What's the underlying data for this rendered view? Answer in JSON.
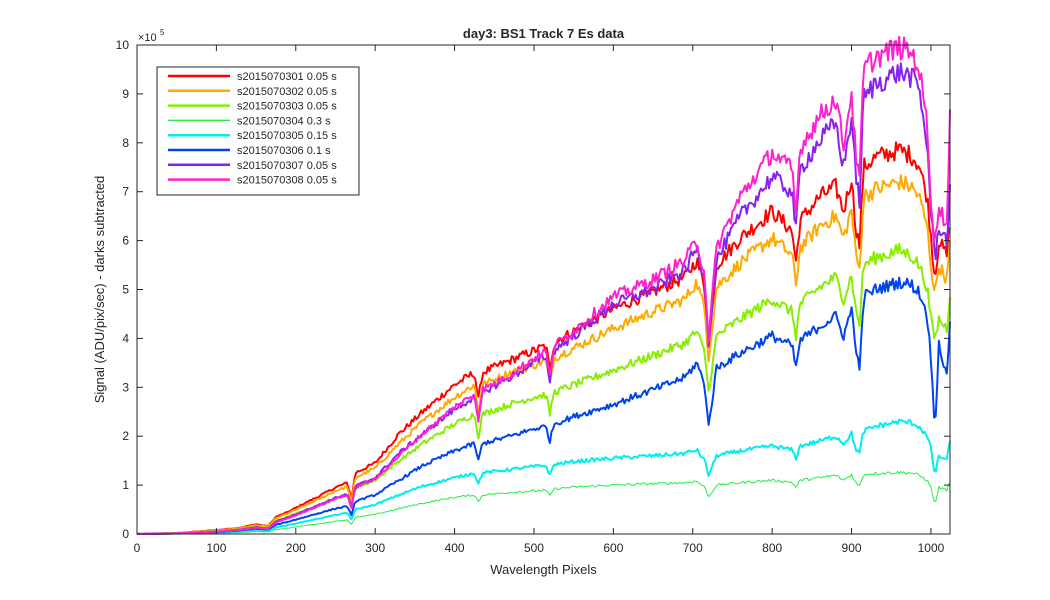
{
  "chart_data": {
    "type": "line",
    "title": "day3: BS1  Track 7 Es data",
    "xlabel": "Wavelength Pixels",
    "ylabel": "Signal (ADU/pix/sec) - darks subtracted",
    "y_exponent_label": "×10",
    "y_exponent_power": "5",
    "xlim": [
      0,
      1024
    ],
    "ylim": [
      0,
      10
    ],
    "y_scale_factor": 100000,
    "x_ticks": [
      0,
      100,
      200,
      300,
      400,
      500,
      600,
      700,
      800,
      900,
      1000
    ],
    "y_ticks": [
      0,
      1,
      2,
      3,
      4,
      5,
      6,
      7,
      8,
      9,
      10
    ],
    "legend_position": "top-left",
    "grid": false,
    "x_points": [
      0,
      50,
      100,
      130,
      150,
      165,
      175,
      190,
      210,
      230,
      250,
      265,
      270,
      275,
      300,
      330,
      360,
      400,
      425,
      430,
      435,
      470,
      500,
      515,
      520,
      525,
      550,
      600,
      650,
      690,
      705,
      715,
      720,
      730,
      760,
      800,
      825,
      830,
      835,
      860,
      880,
      890,
      900,
      905,
      910,
      915,
      930,
      960,
      975,
      985,
      995,
      1000,
      1005,
      1010,
      1020,
      1024
    ],
    "series": [
      {
        "name": "s2015070301 0.05 s",
        "color": "#ff0000",
        "width": 2,
        "values": [
          0,
          0.02,
          0.08,
          0.13,
          0.2,
          0.16,
          0.35,
          0.45,
          0.62,
          0.78,
          0.95,
          1.05,
          0.7,
          1.25,
          1.45,
          2.05,
          2.5,
          3.05,
          3.3,
          2.75,
          3.3,
          3.55,
          3.75,
          3.85,
          3.35,
          3.9,
          4.15,
          4.6,
          4.95,
          5.25,
          5.6,
          5.05,
          3.95,
          5.5,
          6.05,
          6.6,
          6.2,
          5.55,
          6.4,
          6.9,
          7.1,
          6.6,
          7.3,
          6.3,
          5.9,
          7.5,
          7.7,
          7.85,
          7.75,
          7.55,
          6.9,
          6.1,
          5.2,
          6.0,
          5.7,
          6.4
        ]
      },
      {
        "name": "s2015070302 0.05 s",
        "color": "#ffaa00",
        "width": 2,
        "values": [
          0,
          0.02,
          0.07,
          0.12,
          0.18,
          0.15,
          0.32,
          0.42,
          0.57,
          0.72,
          0.88,
          0.97,
          0.65,
          1.15,
          1.35,
          1.85,
          2.3,
          2.8,
          3.05,
          2.5,
          3.05,
          3.3,
          3.45,
          3.55,
          3.05,
          3.6,
          3.8,
          4.2,
          4.55,
          4.8,
          5.15,
          4.6,
          3.6,
          5.05,
          5.55,
          6.05,
          5.7,
          5.1,
          5.85,
          6.3,
          6.5,
          6.05,
          6.65,
          5.75,
          5.4,
          6.9,
          7.05,
          7.2,
          7.1,
          6.9,
          6.3,
          5.5,
          4.9,
          5.5,
          5.2,
          5.9
        ]
      },
      {
        "name": "s2015070303 0.05 s",
        "color": "#88ee00",
        "width": 2,
        "values": [
          0,
          0.02,
          0.06,
          0.1,
          0.15,
          0.12,
          0.27,
          0.35,
          0.48,
          0.6,
          0.74,
          0.82,
          0.55,
          0.95,
          1.1,
          1.5,
          1.85,
          2.25,
          2.45,
          2.0,
          2.45,
          2.65,
          2.8,
          2.85,
          2.45,
          2.9,
          3.05,
          3.35,
          3.65,
          3.9,
          4.15,
          3.7,
          2.9,
          4.05,
          4.4,
          4.8,
          4.55,
          4.05,
          4.7,
          5.05,
          5.25,
          4.8,
          5.3,
          4.6,
          4.3,
          5.5,
          5.65,
          5.8,
          5.7,
          5.5,
          5.05,
          4.4,
          3.95,
          4.4,
          4.2,
          4.9
        ]
      },
      {
        "name": "s2015070304 0.3 s",
        "color": "#22ee44",
        "width": 1,
        "values": [
          0,
          0.01,
          0.02,
          0.03,
          0.05,
          0.04,
          0.09,
          0.12,
          0.17,
          0.21,
          0.26,
          0.29,
          0.2,
          0.34,
          0.4,
          0.52,
          0.63,
          0.75,
          0.8,
          0.66,
          0.8,
          0.85,
          0.88,
          0.9,
          0.78,
          0.92,
          0.96,
          1.0,
          1.03,
          1.05,
          1.08,
          0.96,
          0.76,
          1.0,
          1.05,
          1.1,
          1.06,
          0.95,
          1.1,
          1.15,
          1.2,
          1.1,
          1.22,
          1.05,
          0.98,
          1.22,
          1.24,
          1.26,
          1.25,
          1.2,
          1.1,
          0.95,
          0.6,
          0.95,
          0.9,
          1.05
        ]
      },
      {
        "name": "s2015070305 0.15 s",
        "color": "#00eeee",
        "width": 2,
        "values": [
          0,
          0.01,
          0.03,
          0.05,
          0.08,
          0.06,
          0.14,
          0.18,
          0.25,
          0.32,
          0.39,
          0.43,
          0.3,
          0.5,
          0.6,
          0.8,
          0.98,
          1.15,
          1.25,
          1.02,
          1.25,
          1.32,
          1.38,
          1.4,
          1.2,
          1.42,
          1.48,
          1.55,
          1.6,
          1.65,
          1.72,
          1.5,
          1.2,
          1.6,
          1.7,
          1.8,
          1.72,
          1.55,
          1.8,
          1.9,
          2.0,
          1.85,
          2.05,
          1.75,
          1.65,
          2.1,
          2.2,
          2.3,
          2.28,
          2.2,
          2.0,
          1.75,
          1.2,
          1.6,
          1.5,
          1.95
        ]
      },
      {
        "name": "s2015070306 0.1 s",
        "color": "#0044ee",
        "width": 2,
        "values": [
          0,
          0.01,
          0.04,
          0.07,
          0.11,
          0.09,
          0.19,
          0.25,
          0.34,
          0.43,
          0.52,
          0.57,
          0.38,
          0.67,
          0.8,
          1.1,
          1.4,
          1.7,
          1.85,
          1.5,
          1.85,
          2.0,
          2.15,
          2.2,
          1.9,
          2.25,
          2.4,
          2.65,
          2.95,
          3.2,
          3.5,
          3.05,
          2.2,
          3.4,
          3.7,
          4.05,
          3.85,
          3.4,
          3.95,
          4.25,
          4.45,
          4.05,
          4.6,
          3.9,
          3.3,
          4.85,
          5.0,
          5.15,
          5.1,
          4.95,
          4.5,
          3.6,
          2.1,
          3.9,
          3.2,
          4.4
        ]
      },
      {
        "name": "s2015070307 0.05 s",
        "color": "#8822ee",
        "width": 2,
        "values": [
          0,
          0.01,
          0.05,
          0.09,
          0.14,
          0.11,
          0.26,
          0.34,
          0.47,
          0.6,
          0.74,
          0.82,
          0.55,
          0.98,
          1.15,
          1.65,
          2.05,
          2.55,
          2.8,
          2.3,
          2.9,
          3.2,
          3.5,
          3.65,
          3.15,
          3.75,
          4.05,
          4.7,
          5.0,
          5.4,
          5.85,
          5.2,
          3.9,
          5.6,
          6.5,
          7.3,
          7.0,
          6.2,
          7.45,
          8.05,
          8.4,
          7.5,
          8.55,
          7.4,
          6.8,
          8.9,
          9.2,
          9.45,
          9.35,
          9.1,
          8.0,
          6.6,
          5.6,
          6.3,
          6.0,
          7.0
        ]
      },
      {
        "name": "s2015070308 0.05 s",
        "color": "#ff22cc",
        "width": 2,
        "values": [
          0,
          0.01,
          0.05,
          0.08,
          0.13,
          0.1,
          0.24,
          0.32,
          0.45,
          0.58,
          0.72,
          0.8,
          0.52,
          0.95,
          1.12,
          1.6,
          2.05,
          2.6,
          2.85,
          2.35,
          2.95,
          3.25,
          3.6,
          3.75,
          3.2,
          3.85,
          4.15,
          4.85,
          5.2,
          5.6,
          6.0,
          5.3,
          4.0,
          5.85,
          6.9,
          7.8,
          7.45,
          6.55,
          7.9,
          8.55,
          8.9,
          7.95,
          9.05,
          7.8,
          7.2,
          9.5,
          9.75,
          9.95,
          9.85,
          9.55,
          8.4,
          6.9,
          5.9,
          6.7,
          6.3,
          8.7
        ]
      }
    ]
  }
}
